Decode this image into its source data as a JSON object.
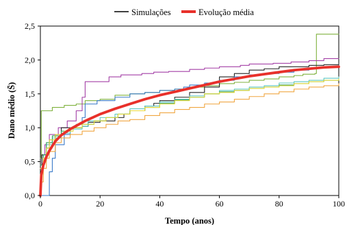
{
  "chart_data": {
    "type": "line",
    "xlabel": "Tempo (anos)",
    "ylabel": "Dano médio (S̄)",
    "xlim": [
      0,
      100
    ],
    "ylim": [
      0,
      2.5
    ],
    "x_ticks": [
      0,
      20,
      40,
      60,
      80,
      100
    ],
    "x_tick_labels": [
      "0",
      "20",
      "40",
      "60",
      "80",
      "100"
    ],
    "y_ticks": [
      0,
      0.5,
      1.0,
      1.5,
      2.0,
      2.5
    ],
    "y_tick_labels": [
      "0,0",
      "0,5",
      "1,0",
      "1,5",
      "2,0",
      "2,5"
    ],
    "grid": false,
    "legend_position": "top",
    "legend": [
      {
        "label": "Simulações",
        "color": "#000000"
      },
      {
        "label": "Evolução média",
        "color": "#e8302a"
      }
    ],
    "series": [
      {
        "color": "#7fb13d",
        "step": true,
        "points": [
          [
            0,
            0.55
          ],
          [
            0.3,
            1.25
          ],
          [
            4,
            1.3
          ],
          [
            8,
            1.33
          ],
          [
            12,
            1.35
          ],
          [
            15,
            1.4
          ],
          [
            20,
            1.42
          ],
          [
            25,
            1.48
          ],
          [
            30,
            1.5
          ],
          [
            35,
            1.52
          ],
          [
            40,
            1.55
          ],
          [
            45,
            1.57
          ],
          [
            50,
            1.6
          ],
          [
            55,
            1.62
          ],
          [
            60,
            1.65
          ],
          [
            65,
            1.67
          ],
          [
            70,
            1.7
          ],
          [
            75,
            1.72
          ],
          [
            80,
            1.75
          ],
          [
            85,
            1.77
          ],
          [
            88,
            1.79
          ],
          [
            92,
            1.8
          ],
          [
            92.5,
            2.38
          ],
          [
            100,
            2.38
          ]
        ]
      },
      {
        "color": "#a33fa6",
        "step": true,
        "points": [
          [
            0,
            0.45
          ],
          [
            0.5,
            0.6
          ],
          [
            1.5,
            0.75
          ],
          [
            3,
            0.9
          ],
          [
            6,
            1.0
          ],
          [
            9,
            1.1
          ],
          [
            12,
            1.25
          ],
          [
            14,
            1.45
          ],
          [
            15,
            1.68
          ],
          [
            23,
            1.75
          ],
          [
            27,
            1.78
          ],
          [
            34,
            1.8
          ],
          [
            38,
            1.82
          ],
          [
            43,
            1.83
          ],
          [
            50,
            1.86
          ],
          [
            55,
            1.88
          ],
          [
            60,
            1.9
          ],
          [
            67,
            1.92
          ],
          [
            70,
            1.94
          ],
          [
            78,
            1.95
          ],
          [
            84,
            1.97
          ],
          [
            90,
            1.99
          ],
          [
            95,
            2.02
          ],
          [
            100,
            2.02
          ]
        ]
      },
      {
        "color": "#222222",
        "step": true,
        "points": [
          [
            0,
            0.45
          ],
          [
            0.5,
            0.6
          ],
          [
            2,
            0.7
          ],
          [
            3,
            0.82
          ],
          [
            5,
            0.9
          ],
          [
            7,
            1.0
          ],
          [
            14,
            1.02
          ],
          [
            16,
            1.08
          ],
          [
            20,
            1.1
          ],
          [
            25,
            1.15
          ],
          [
            28,
            1.2
          ],
          [
            30,
            1.25
          ],
          [
            35,
            1.32
          ],
          [
            38,
            1.36
          ],
          [
            40,
            1.4
          ],
          [
            45,
            1.45
          ],
          [
            50,
            1.52
          ],
          [
            55,
            1.6
          ],
          [
            60,
            1.75
          ],
          [
            65,
            1.8
          ],
          [
            70,
            1.85
          ],
          [
            75,
            1.87
          ],
          [
            80,
            1.9
          ],
          [
            90,
            1.92
          ],
          [
            95,
            1.93
          ],
          [
            100,
            1.95
          ]
        ]
      },
      {
        "color": "#3a7ac9",
        "step": true,
        "points": [
          [
            0,
            0.0
          ],
          [
            2.8,
            0.0
          ],
          [
            3,
            0.35
          ],
          [
            4,
            0.55
          ],
          [
            5,
            0.75
          ],
          [
            8,
            0.9
          ],
          [
            10,
            1.0
          ],
          [
            12,
            1.05
          ],
          [
            14,
            1.15
          ],
          [
            15,
            1.35
          ],
          [
            19,
            1.4
          ],
          [
            25,
            1.45
          ],
          [
            30,
            1.5
          ],
          [
            35,
            1.52
          ],
          [
            40,
            1.55
          ],
          [
            45,
            1.57
          ],
          [
            48,
            1.6
          ],
          [
            50,
            1.63
          ],
          [
            55,
            1.66
          ],
          [
            60,
            1.7
          ],
          [
            65,
            1.75
          ],
          [
            70,
            1.78
          ],
          [
            75,
            1.8
          ],
          [
            80,
            1.82
          ],
          [
            85,
            1.85
          ],
          [
            90,
            1.88
          ],
          [
            95,
            1.9
          ],
          [
            100,
            1.92
          ]
        ]
      },
      {
        "color": "#5cc6c2",
        "step": true,
        "points": [
          [
            0,
            0.45
          ],
          [
            1,
            0.6
          ],
          [
            2,
            0.75
          ],
          [
            4,
            0.85
          ],
          [
            7,
            0.92
          ],
          [
            10,
            0.98
          ],
          [
            14,
            1.02
          ],
          [
            16,
            1.1
          ],
          [
            20,
            1.15
          ],
          [
            25,
            1.2
          ],
          [
            30,
            1.28
          ],
          [
            35,
            1.32
          ],
          [
            40,
            1.38
          ],
          [
            45,
            1.42
          ],
          [
            50,
            1.47
          ],
          [
            55,
            1.5
          ],
          [
            60,
            1.55
          ],
          [
            65,
            1.57
          ],
          [
            70,
            1.6
          ],
          [
            75,
            1.62
          ],
          [
            80,
            1.66
          ],
          [
            85,
            1.68
          ],
          [
            90,
            1.7
          ],
          [
            95,
            1.73
          ],
          [
            100,
            1.75
          ]
        ]
      },
      {
        "color": "#2f9e5a",
        "step": true,
        "points": [
          [
            0,
            0.45
          ],
          [
            1,
            0.6
          ],
          [
            2,
            0.78
          ],
          [
            4,
            0.88
          ],
          [
            7,
            0.95
          ],
          [
            10,
            1.0
          ],
          [
            14,
            1.05
          ],
          [
            18,
            1.1
          ],
          [
            22,
            1.15
          ],
          [
            26,
            1.2
          ],
          [
            30,
            1.25
          ],
          [
            35,
            1.3
          ],
          [
            40,
            1.36
          ],
          [
            45,
            1.41
          ],
          [
            50,
            1.45
          ],
          [
            55,
            1.5
          ],
          [
            60,
            1.53
          ],
          [
            65,
            1.55
          ],
          [
            70,
            1.58
          ],
          [
            75,
            1.6
          ],
          [
            80,
            1.63
          ],
          [
            85,
            1.65
          ],
          [
            90,
            1.68
          ],
          [
            95,
            1.7
          ],
          [
            100,
            1.72
          ]
        ]
      },
      {
        "color": "#e6d93a",
        "step": true,
        "points": [
          [
            0,
            0.4
          ],
          [
            1,
            0.55
          ],
          [
            2,
            0.7
          ],
          [
            3,
            0.82
          ],
          [
            5,
            0.9
          ],
          [
            8,
            0.95
          ],
          [
            11,
            1.0
          ],
          [
            14,
            1.05
          ],
          [
            18,
            1.1
          ],
          [
            22,
            1.15
          ],
          [
            26,
            1.2
          ],
          [
            30,
            1.25
          ],
          [
            35,
            1.3
          ],
          [
            40,
            1.35
          ],
          [
            45,
            1.4
          ],
          [
            50,
            1.45
          ],
          [
            55,
            1.5
          ],
          [
            60,
            1.52
          ],
          [
            65,
            1.55
          ],
          [
            70,
            1.58
          ],
          [
            75,
            1.6
          ],
          [
            80,
            1.62
          ],
          [
            85,
            1.65
          ],
          [
            90,
            1.68
          ],
          [
            95,
            1.7
          ],
          [
            100,
            1.72
          ]
        ]
      },
      {
        "color": "#f0a640",
        "step": true,
        "points": [
          [
            0,
            0.2
          ],
          [
            1,
            0.4
          ],
          [
            2,
            0.55
          ],
          [
            3,
            0.65
          ],
          [
            5,
            0.78
          ],
          [
            7,
            0.85
          ],
          [
            10,
            0.9
          ],
          [
            14,
            0.95
          ],
          [
            18,
            1.0
          ],
          [
            22,
            1.05
          ],
          [
            26,
            1.1
          ],
          [
            30,
            1.12
          ],
          [
            35,
            1.18
          ],
          [
            40,
            1.22
          ],
          [
            45,
            1.27
          ],
          [
            50,
            1.3
          ],
          [
            55,
            1.35
          ],
          [
            60,
            1.38
          ],
          [
            65,
            1.42
          ],
          [
            70,
            1.46
          ],
          [
            75,
            1.5
          ],
          [
            80,
            1.53
          ],
          [
            85,
            1.57
          ],
          [
            90,
            1.6
          ],
          [
            95,
            1.62
          ],
          [
            100,
            1.65
          ]
        ]
      },
      {
        "color": "#e8302a",
        "step": false,
        "width": 3.8,
        "points": [
          [
            0,
            0.0
          ],
          [
            0.3,
            0.3
          ],
          [
            1,
            0.45
          ],
          [
            2,
            0.57
          ],
          [
            3,
            0.66
          ],
          [
            5,
            0.8
          ],
          [
            7,
            0.89
          ],
          [
            10,
            0.98
          ],
          [
            15,
            1.1
          ],
          [
            20,
            1.2
          ],
          [
            25,
            1.28
          ],
          [
            30,
            1.35
          ],
          [
            35,
            1.42
          ],
          [
            40,
            1.48
          ],
          [
            45,
            1.53
          ],
          [
            50,
            1.58
          ],
          [
            55,
            1.63
          ],
          [
            60,
            1.68
          ],
          [
            65,
            1.72
          ],
          [
            70,
            1.76
          ],
          [
            75,
            1.79
          ],
          [
            80,
            1.82
          ],
          [
            85,
            1.85
          ],
          [
            90,
            1.87
          ],
          [
            95,
            1.89
          ],
          [
            100,
            1.9
          ]
        ]
      }
    ]
  }
}
